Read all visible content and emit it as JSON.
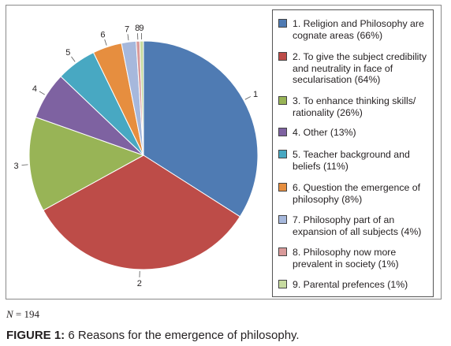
{
  "chart_data": {
    "type": "pie",
    "slice_labels": [
      "1",
      "2",
      "3",
      "4",
      "5",
      "6",
      "7",
      "8",
      "9"
    ],
    "values": [
      66,
      64,
      26,
      13,
      11,
      8,
      4,
      1,
      1
    ],
    "colors": [
      "#4f7bb3",
      "#bd4c48",
      "#98b456",
      "#7e62a1",
      "#48a8c2",
      "#e68e3f",
      "#a6b8dc",
      "#d99a9a",
      "#c7dba0"
    ],
    "legend_placement": "right",
    "legend": [
      "1. Religion and Philosophy are cognate areas (66%)",
      "2. To give the subject credibility and neutrality in face of secularisation (64%)",
      "3. To enhance thinking skills/ rationality (26%)",
      "4. Other (13%)",
      "5. Teacher background and beliefs (11%)",
      "6. Question the emergence of philosophy (8%)",
      "7. Philosophy part of an expansion of all subjects (4%)",
      "8. Philosophy now more prevalent in society (1%)",
      "9. Parental prefences (1%)"
    ]
  },
  "note": {
    "n_symbol": "N",
    "n_value": "= 194"
  },
  "caption": {
    "prefix": "FIGURE 1:",
    "text": " 6 Reasons for the emergence of philosophy."
  }
}
